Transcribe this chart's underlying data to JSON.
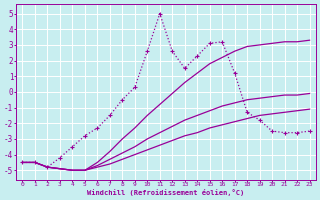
{
  "background_color": "#c8eef0",
  "grid_color": "#ffffff",
  "line_color": "#990099",
  "xlabel": "Windchill (Refroidissement éolien,°C)",
  "x_ticks": [
    0,
    1,
    2,
    3,
    4,
    5,
    6,
    7,
    8,
    9,
    10,
    11,
    12,
    13,
    14,
    15,
    16,
    17,
    18,
    19,
    20,
    21,
    22,
    23
  ],
  "y_ticks": [
    -5,
    -4,
    -3,
    -2,
    -1,
    0,
    1,
    2,
    3,
    4,
    5
  ],
  "ylim": [
    -5.6,
    5.6
  ],
  "xlim": [
    -0.5,
    23.5
  ],
  "series_solid": [
    {
      "x": [
        0,
        1,
        2,
        3,
        4,
        5,
        6,
        7,
        8,
        9,
        10,
        11,
        12,
        13,
        14,
        15,
        16,
        17,
        18,
        19,
        20,
        21,
        22,
        23
      ],
      "y": [
        -4.5,
        -4.5,
        -4.8,
        -4.9,
        -5.0,
        -5.0,
        -4.8,
        -4.6,
        -4.3,
        -4.0,
        -3.7,
        -3.4,
        -3.1,
        -2.8,
        -2.6,
        -2.3,
        -2.1,
        -1.9,
        -1.7,
        -1.5,
        -1.4,
        -1.3,
        -1.2,
        -1.1
      ]
    },
    {
      "x": [
        0,
        1,
        2,
        3,
        4,
        5,
        6,
        7,
        8,
        9,
        10,
        11,
        12,
        13,
        14,
        15,
        16,
        17,
        18,
        19,
        20,
        21,
        22,
        23
      ],
      "y": [
        -4.5,
        -4.5,
        -4.8,
        -4.9,
        -5.0,
        -5.0,
        -4.7,
        -4.3,
        -3.9,
        -3.5,
        -3.0,
        -2.6,
        -2.2,
        -1.8,
        -1.5,
        -1.2,
        -0.9,
        -0.7,
        -0.5,
        -0.4,
        -0.3,
        -0.2,
        -0.2,
        -0.1
      ]
    },
    {
      "x": [
        0,
        1,
        2,
        3,
        4,
        5,
        6,
        7,
        8,
        9,
        10,
        11,
        12,
        13,
        14,
        15,
        16,
        17,
        18,
        19,
        20,
        21,
        22,
        23
      ],
      "y": [
        -4.5,
        -4.5,
        -4.8,
        -4.9,
        -5.0,
        -5.0,
        -4.5,
        -3.8,
        -3.0,
        -2.3,
        -1.5,
        -0.8,
        -0.1,
        0.6,
        1.2,
        1.8,
        2.2,
        2.6,
        2.9,
        3.0,
        3.1,
        3.2,
        3.2,
        3.3
      ]
    }
  ],
  "series_dotted": {
    "x": [
      0,
      1,
      2,
      3,
      4,
      5,
      6,
      7,
      8,
      9,
      10,
      11,
      12,
      13,
      14,
      15,
      16,
      17,
      18,
      19,
      20,
      21,
      22,
      23
    ],
    "y": [
      -4.5,
      -4.5,
      -4.8,
      -4.2,
      -3.5,
      -2.8,
      -2.3,
      -1.5,
      -0.5,
      0.3,
      2.6,
      5.0,
      2.6,
      1.5,
      2.3,
      3.1,
      3.2,
      1.2,
      -1.3,
      -1.8,
      -2.5,
      -2.6,
      -2.6,
      -2.5
    ]
  }
}
